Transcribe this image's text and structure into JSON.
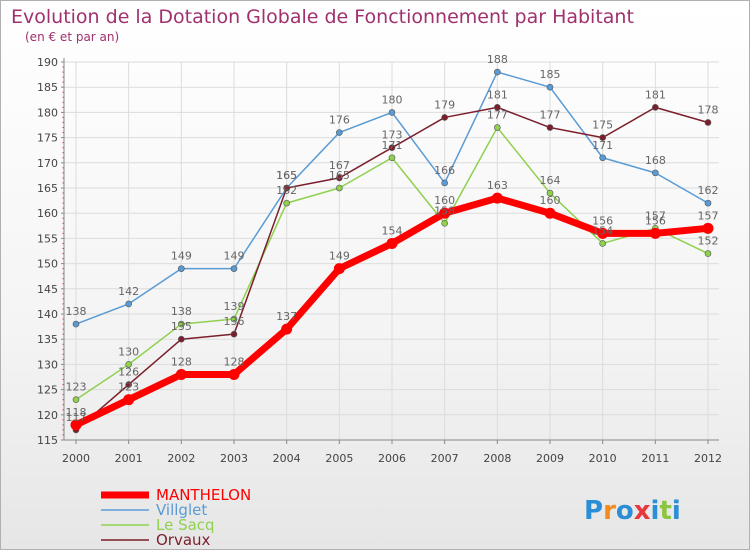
{
  "chart_data": {
    "type": "line",
    "title": "Evolution de la Dotation Globale de Fonctionnement par Habitant",
    "subtitle": "(en € et par an)",
    "x": [
      "2000",
      "2001",
      "2002",
      "2003",
      "2004",
      "2005",
      "2006",
      "2007",
      "2008",
      "2009",
      "2010",
      "2011",
      "2012"
    ],
    "ylim": [
      115,
      190
    ],
    "yticks": [
      115,
      120,
      125,
      130,
      135,
      140,
      145,
      150,
      155,
      160,
      165,
      170,
      175,
      180,
      185,
      190
    ],
    "series": [
      {
        "name": "Villglet",
        "color": "#5a9bd4",
        "width": 1.5,
        "values": [
          138,
          142,
          149,
          149,
          165,
          176,
          180,
          166,
          188,
          185,
          171,
          168,
          162
        ]
      },
      {
        "name": "Le Sacq",
        "color": "#8fd14f",
        "width": 1.5,
        "values": [
          123,
          130,
          138,
          139,
          162,
          165,
          171,
          158,
          177,
          164,
          154,
          157,
          152
        ]
      },
      {
        "name": "Orvaux",
        "color": "#7a1f2b",
        "width": 1.5,
        "values": [
          117,
          126,
          135,
          136,
          165,
          167,
          173,
          179,
          181,
          177,
          175,
          181,
          178
        ]
      },
      {
        "name": "MANTHELON",
        "color": "#ff0000",
        "width": 7,
        "values": [
          118,
          123,
          128,
          128,
          137,
          149,
          154,
          160,
          163,
          160,
          156,
          156,
          157
        ]
      }
    ],
    "legend": [
      "MANTHELON",
      "Villglet",
      "Le Sacq",
      "Orvaux"
    ],
    "legend_position": "bottom-left",
    "brand": "Proxiti"
  }
}
